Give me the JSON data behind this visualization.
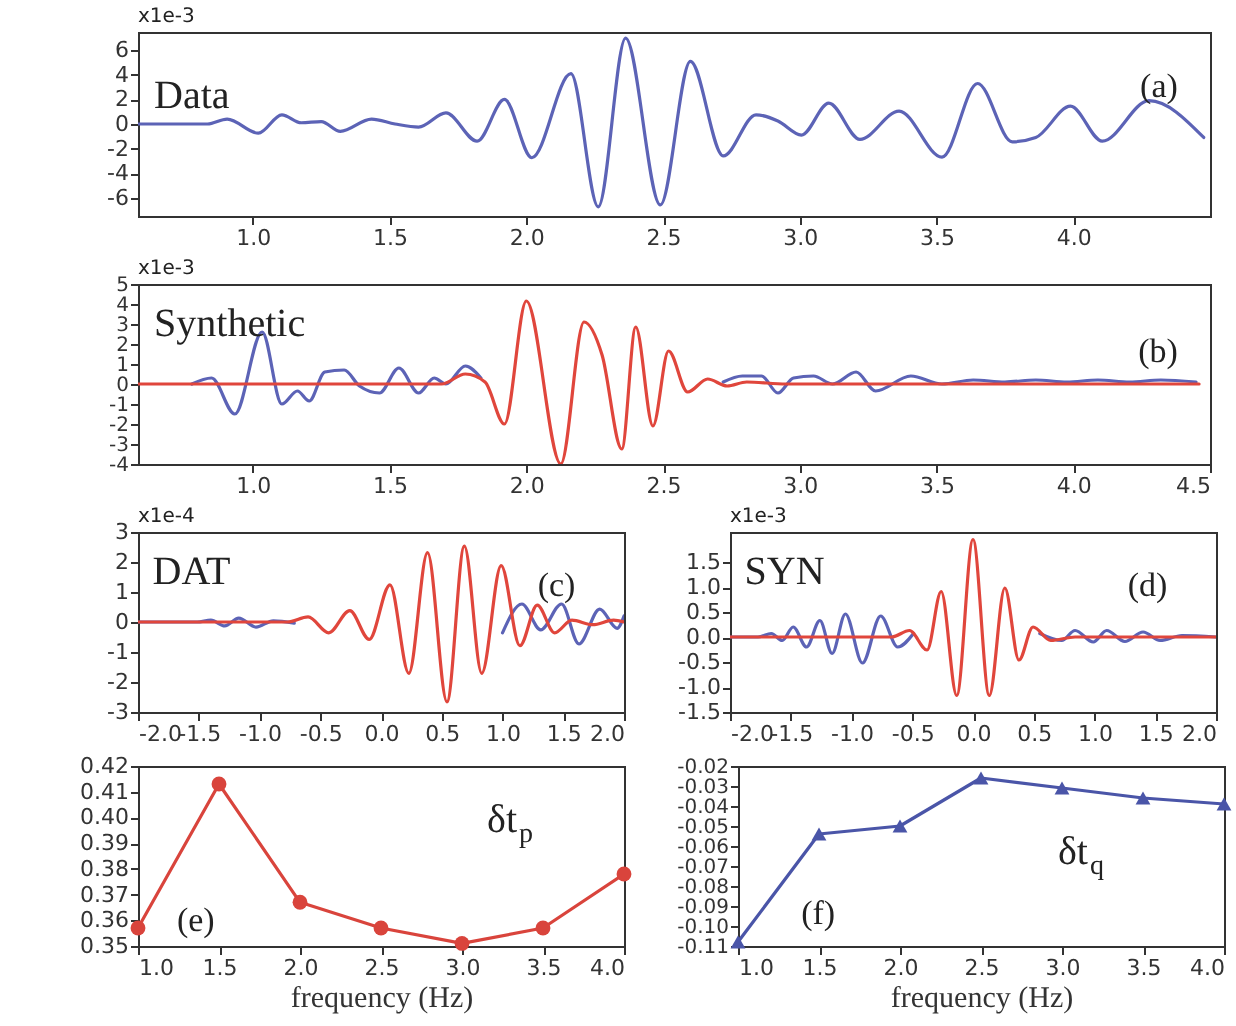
{
  "chart_data": [
    {
      "type": "line",
      "annotations": [
        "x1e-3",
        "Data",
        "(a)"
      ],
      "xlim": [
        0.58,
        4.5
      ],
      "xticks": [
        {
          "value": 1,
          "label": "1.0"
        },
        {
          "value": 1.5,
          "label": "1.5"
        },
        {
          "value": 2,
          "label": "2.0"
        },
        {
          "value": 2.5,
          "label": "2.5"
        },
        {
          "value": 3,
          "label": "3.0"
        },
        {
          "value": 3.5,
          "label": "3.5"
        },
        {
          "value": 4,
          "label": "4.0"
        }
      ],
      "ylim": [
        -7.5,
        7.5
      ],
      "yticks": [
        -6,
        -4,
        -2,
        0,
        2,
        4,
        6
      ],
      "series": [
        {
          "color": "#5c63b6",
          "x": [
            0.58,
            0.834,
            0.906,
            1.02,
            1.106,
            1.177,
            1.25,
            1.32,
            1.434,
            1.52,
            1.606,
            1.706,
            1.82,
            1.92,
            2.02,
            2.163,
            2.263,
            2.363,
            2.49,
            2.6,
            2.72,
            2.84,
            2.92,
            3.006,
            3.106,
            3.22,
            3.363,
            3.52,
            3.65,
            3.777,
            3.863,
            3.99,
            4.106,
            4.277,
            4.477
          ],
          "values": [
            0,
            0,
            0.4,
            -0.75,
            0.75,
            0.1,
            0.2,
            -0.6,
            0.4,
            0,
            -0.25,
            0.9,
            -1.4,
            2.0,
            -2.75,
            4.1,
            -6.75,
            7.0,
            -6.6,
            5.1,
            -2.6,
            0.75,
            0.25,
            -0.9,
            1.7,
            -1.25,
            1.05,
            -2.7,
            3.3,
            -1.45,
            -1.1,
            1.45,
            -1.4,
            1.9,
            -1.1
          ]
        }
      ]
    },
    {
      "type": "line",
      "annotations": [
        "x1e-3",
        "Synthetic",
        "(b)"
      ],
      "xlim": [
        0.58,
        4.5
      ],
      "xticks": [
        {
          "value": 1,
          "label": "1.0"
        },
        {
          "value": 1.5,
          "label": "1.5"
        },
        {
          "value": 2,
          "label": "2.0"
        },
        {
          "value": 2.5,
          "label": "2.5"
        },
        {
          "value": 3,
          "label": "3.0"
        },
        {
          "value": 3.5,
          "label": "3.5"
        },
        {
          "value": 4,
          "label": "4.0"
        },
        {
          "value": 4.5,
          "label": "4.5"
        }
      ],
      "ylim": [
        -4,
        5
      ],
      "yticks": [
        -4,
        -3,
        -2,
        -1,
        0,
        1,
        2,
        3,
        4,
        5
      ],
      "series": [
        {
          "color": "#5c63b6",
          "x": [
            0.777,
            0.849,
            0.934,
            1.034,
            1.106,
            1.163,
            1.206,
            1.263,
            1.334,
            1.39,
            1.463,
            1.534,
            1.606,
            1.663,
            1.706,
            1.777,
            1.834,
            2.3,
            2.72,
            2.79,
            2.86,
            2.92,
            2.977,
            3.05,
            3.12,
            3.206,
            3.277,
            3.406,
            3.52,
            3.634,
            3.75,
            3.863,
            3.977,
            4.09,
            4.206,
            4.32,
            4.449
          ],
          "values": [
            0,
            0.3,
            -1.5,
            2.6,
            -1.0,
            -0.35,
            -0.85,
            0.6,
            0.7,
            -0.1,
            -0.45,
            0.8,
            -0.45,
            0.3,
            0,
            0.9,
            0.3,
            null,
            0.1,
            0.4,
            0.4,
            -0.45,
            0.3,
            0.4,
            0,
            0.6,
            -0.35,
            0.4,
            0,
            0.2,
            0.1,
            0.2,
            0.1,
            0.2,
            0.1,
            0.2,
            0.1
          ]
        },
        {
          "color": "#e0463c",
          "x": [
            0.58,
            1.69,
            1.777,
            1.849,
            1.92,
            2.0,
            2.126,
            2.211,
            2.277,
            2.349,
            2.4,
            2.463,
            2.52,
            2.59,
            2.663,
            2.734,
            2.806,
            2.95,
            4.46
          ],
          "values": [
            0,
            0,
            0.5,
            0.1,
            -2.0,
            4.15,
            -4.0,
            3.1,
            1.45,
            -3.25,
            2.85,
            -2.1,
            1.65,
            -0.4,
            0.25,
            -0.1,
            0.1,
            0,
            0
          ]
        }
      ]
    },
    {
      "type": "line",
      "annotations": [
        "x1e-4",
        "DAT",
        "(c)"
      ],
      "xlim": [
        -2,
        2
      ],
      "xticks": [
        {
          "value": -2,
          "label": "-2.0"
        },
        {
          "value": -1.5,
          "label": "-1.5"
        },
        {
          "value": -1,
          "label": "-1.0"
        },
        {
          "value": -0.5,
          "label": "-0.5"
        },
        {
          "value": 0,
          "label": "0.0"
        },
        {
          "value": 0.5,
          "label": "0.5"
        },
        {
          "value": 1,
          "label": "1.0"
        },
        {
          "value": 1.5,
          "label": "1.5"
        },
        {
          "value": 2,
          "label": "2.0"
        }
      ],
      "ylim": [
        -3,
        3
      ],
      "yticks": [
        -3,
        -2,
        -1,
        0,
        1,
        2,
        3
      ],
      "series": [
        {
          "color": "#5c63b6",
          "x": [
            -2,
            -1.514,
            -1.4,
            -1.286,
            -1.171,
            -1.029,
            -0.886,
            -0.714,
            0.2,
            1.0,
            1.16,
            1.314,
            1.486,
            1.629,
            1.8,
            1.943,
            2.0
          ],
          "values": [
            0,
            0,
            0.06,
            -0.13,
            0.13,
            -0.17,
            0.04,
            -0.04,
            null,
            -0.36,
            0.6,
            -0.26,
            0.6,
            -0.73,
            0.43,
            -0.21,
            0.2
          ]
        },
        {
          "color": "#e0463c",
          "x": [
            -2,
            -0.771,
            -0.6,
            -0.43,
            -0.257,
            -0.097,
            0.074,
            0.229,
            0.383,
            0.543,
            0.686,
            0.829,
            0.989,
            1.143,
            1.286,
            1.429,
            1.571,
            1.743,
            1.914,
            2.0
          ],
          "values": [
            0,
            0,
            0.17,
            -0.36,
            0.38,
            -0.58,
            1.24,
            -1.71,
            2.31,
            -2.66,
            2.53,
            -1.71,
            1.88,
            -0.79,
            0.56,
            -0.36,
            0.06,
            -0.09,
            0.06,
            0
          ]
        }
      ]
    },
    {
      "type": "line",
      "annotations": [
        "x1e-3",
        "SYN",
        "(d)"
      ],
      "xlim": [
        -2,
        2
      ],
      "xticks": [
        {
          "value": -2,
          "label": "-2.0"
        },
        {
          "value": -1.5,
          "label": "-1.5"
        },
        {
          "value": -1,
          "label": "-1.0"
        },
        {
          "value": -0.5,
          "label": "-0.5"
        },
        {
          "value": 0,
          "label": "0.0"
        },
        {
          "value": 0.5,
          "label": "0.5"
        },
        {
          "value": 1,
          "label": "1.0"
        },
        {
          "value": 1.5,
          "label": "1.5"
        },
        {
          "value": 2,
          "label": "2.0"
        }
      ],
      "ylim": [
        -1.5,
        2.1
      ],
      "yticks": [
        {
          "value": -1.5,
          "label": "-1.5"
        },
        {
          "value": -1,
          "label": "-1.0"
        },
        {
          "value": -0.5,
          "label": "-0.5"
        },
        {
          "value": 0,
          "label": "0.0"
        },
        {
          "value": 0.5,
          "label": "0.5"
        },
        {
          "value": 1,
          "label": "1.0"
        },
        {
          "value": 1.5,
          "label": "1.5"
        }
      ],
      "series": [
        {
          "color": "#5c63b6",
          "x": [
            -2,
            -1.77,
            -1.66,
            -1.57,
            -1.48,
            -1.37,
            -1.26,
            -1.16,
            -1.05,
            -0.91,
            -0.76,
            -0.62,
            -0.49,
            0,
            0.55,
            0.73,
            0.84,
            0.99,
            1.1,
            1.25,
            1.4,
            1.54,
            1.72,
            2.0
          ],
          "values": [
            0,
            0,
            0.07,
            -0.07,
            0.2,
            -0.2,
            0.33,
            -0.33,
            0.46,
            -0.52,
            0.42,
            -0.2,
            0.07,
            null,
            0.07,
            -0.07,
            0.13,
            -0.1,
            0.13,
            -0.09,
            0.1,
            -0.07,
            0.03,
            0
          ]
        },
        {
          "color": "#e0463c",
          "x": [
            -2,
            -0.669,
            -0.523,
            -0.378,
            -0.262,
            -0.134,
            0,
            0.134,
            0.262,
            0.378,
            0.494,
            0.64,
            0.84,
            2.0
          ],
          "values": [
            0,
            0,
            0.13,
            -0.26,
            0.91,
            -1.17,
            1.95,
            -1.17,
            0.98,
            -0.46,
            0.2,
            -0.07,
            0,
            0
          ]
        }
      ]
    },
    {
      "type": "line",
      "annotations": [
        "δt$_{p}$",
        "(e)"
      ],
      "xlabel": "frequency (Hz)",
      "marker": "circle",
      "xlim": [
        1,
        4
      ],
      "xticks": [
        {
          "value": 1,
          "label": "1.0"
        },
        {
          "value": 1.5,
          "label": "1.5"
        },
        {
          "value": 2,
          "label": "2.0"
        },
        {
          "value": 2.5,
          "label": "2.5"
        },
        {
          "value": 3,
          "label": "3.0"
        },
        {
          "value": 3.5,
          "label": "3.5"
        },
        {
          "value": 4,
          "label": "4.0"
        }
      ],
      "ylim": [
        0.35,
        0.42
      ],
      "yticks": [
        0.35,
        0.36,
        0.37,
        0.38,
        0.39,
        {
          "value": 0.4,
          "label": "0.40"
        },
        0.41,
        0.42
      ],
      "series": [
        {
          "color": "#d9443c",
          "x": [
            1,
            1.5,
            2,
            2.5,
            3,
            3.5,
            4
          ],
          "values": [
            0.357,
            0.413,
            0.367,
            0.357,
            0.351,
            0.357,
            0.378
          ]
        }
      ]
    },
    {
      "type": "line",
      "annotations": [
        "δt$_{q}$",
        "(f)"
      ],
      "xlabel": "frequency (Hz)",
      "marker": "triangle",
      "xlim": [
        1,
        4
      ],
      "xticks": [
        {
          "value": 1,
          "label": "1.0"
        },
        {
          "value": 1.5,
          "label": "1.5"
        },
        {
          "value": 2,
          "label": "2.0"
        },
        {
          "value": 2.5,
          "label": "2.5"
        },
        {
          "value": 3,
          "label": "3.0"
        },
        {
          "value": 3.5,
          "label": "3.5"
        },
        {
          "value": 4,
          "label": "4.0"
        }
      ],
      "ylim": [
        -0.11,
        -0.02
      ],
      "yticks": [
        -0.11,
        {
          "value": -0.1,
          "label": "-0.10"
        },
        -0.09,
        -0.08,
        -0.07,
        -0.06,
        -0.05,
        -0.04,
        -0.03,
        -0.02
      ],
      "series": [
        {
          "color": "#4a55a8",
          "x": [
            1,
            1.5,
            2,
            2.5,
            3,
            3.5,
            4
          ],
          "values": [
            -0.108,
            -0.054,
            -0.05,
            -0.026,
            -0.031,
            -0.036,
            -0.039
          ]
        }
      ]
    }
  ]
}
